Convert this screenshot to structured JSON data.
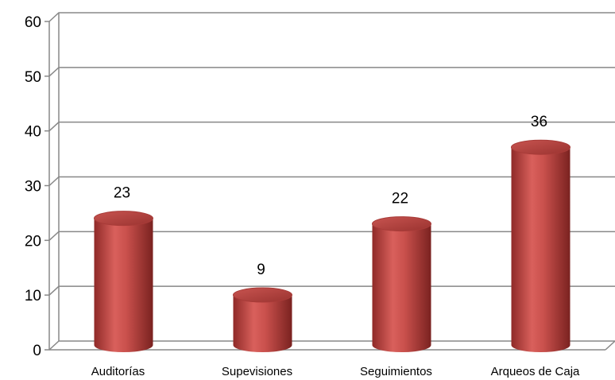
{
  "chart_data": {
    "type": "bar",
    "categories": [
      "Auditorías",
      "Supevisiones",
      "Seguimientos",
      "Arqueos de Caja"
    ],
    "values": [
      23,
      9,
      22,
      36
    ],
    "data_labels": [
      "23",
      "9",
      "22",
      "36"
    ],
    "ylim": [
      0,
      60
    ],
    "yticks": [
      "0",
      "10",
      "20",
      "30",
      "40",
      "50",
      "60"
    ],
    "grid": true,
    "legend": "none",
    "style": "3d-cylinder",
    "bar_color": "#c0504d"
  }
}
